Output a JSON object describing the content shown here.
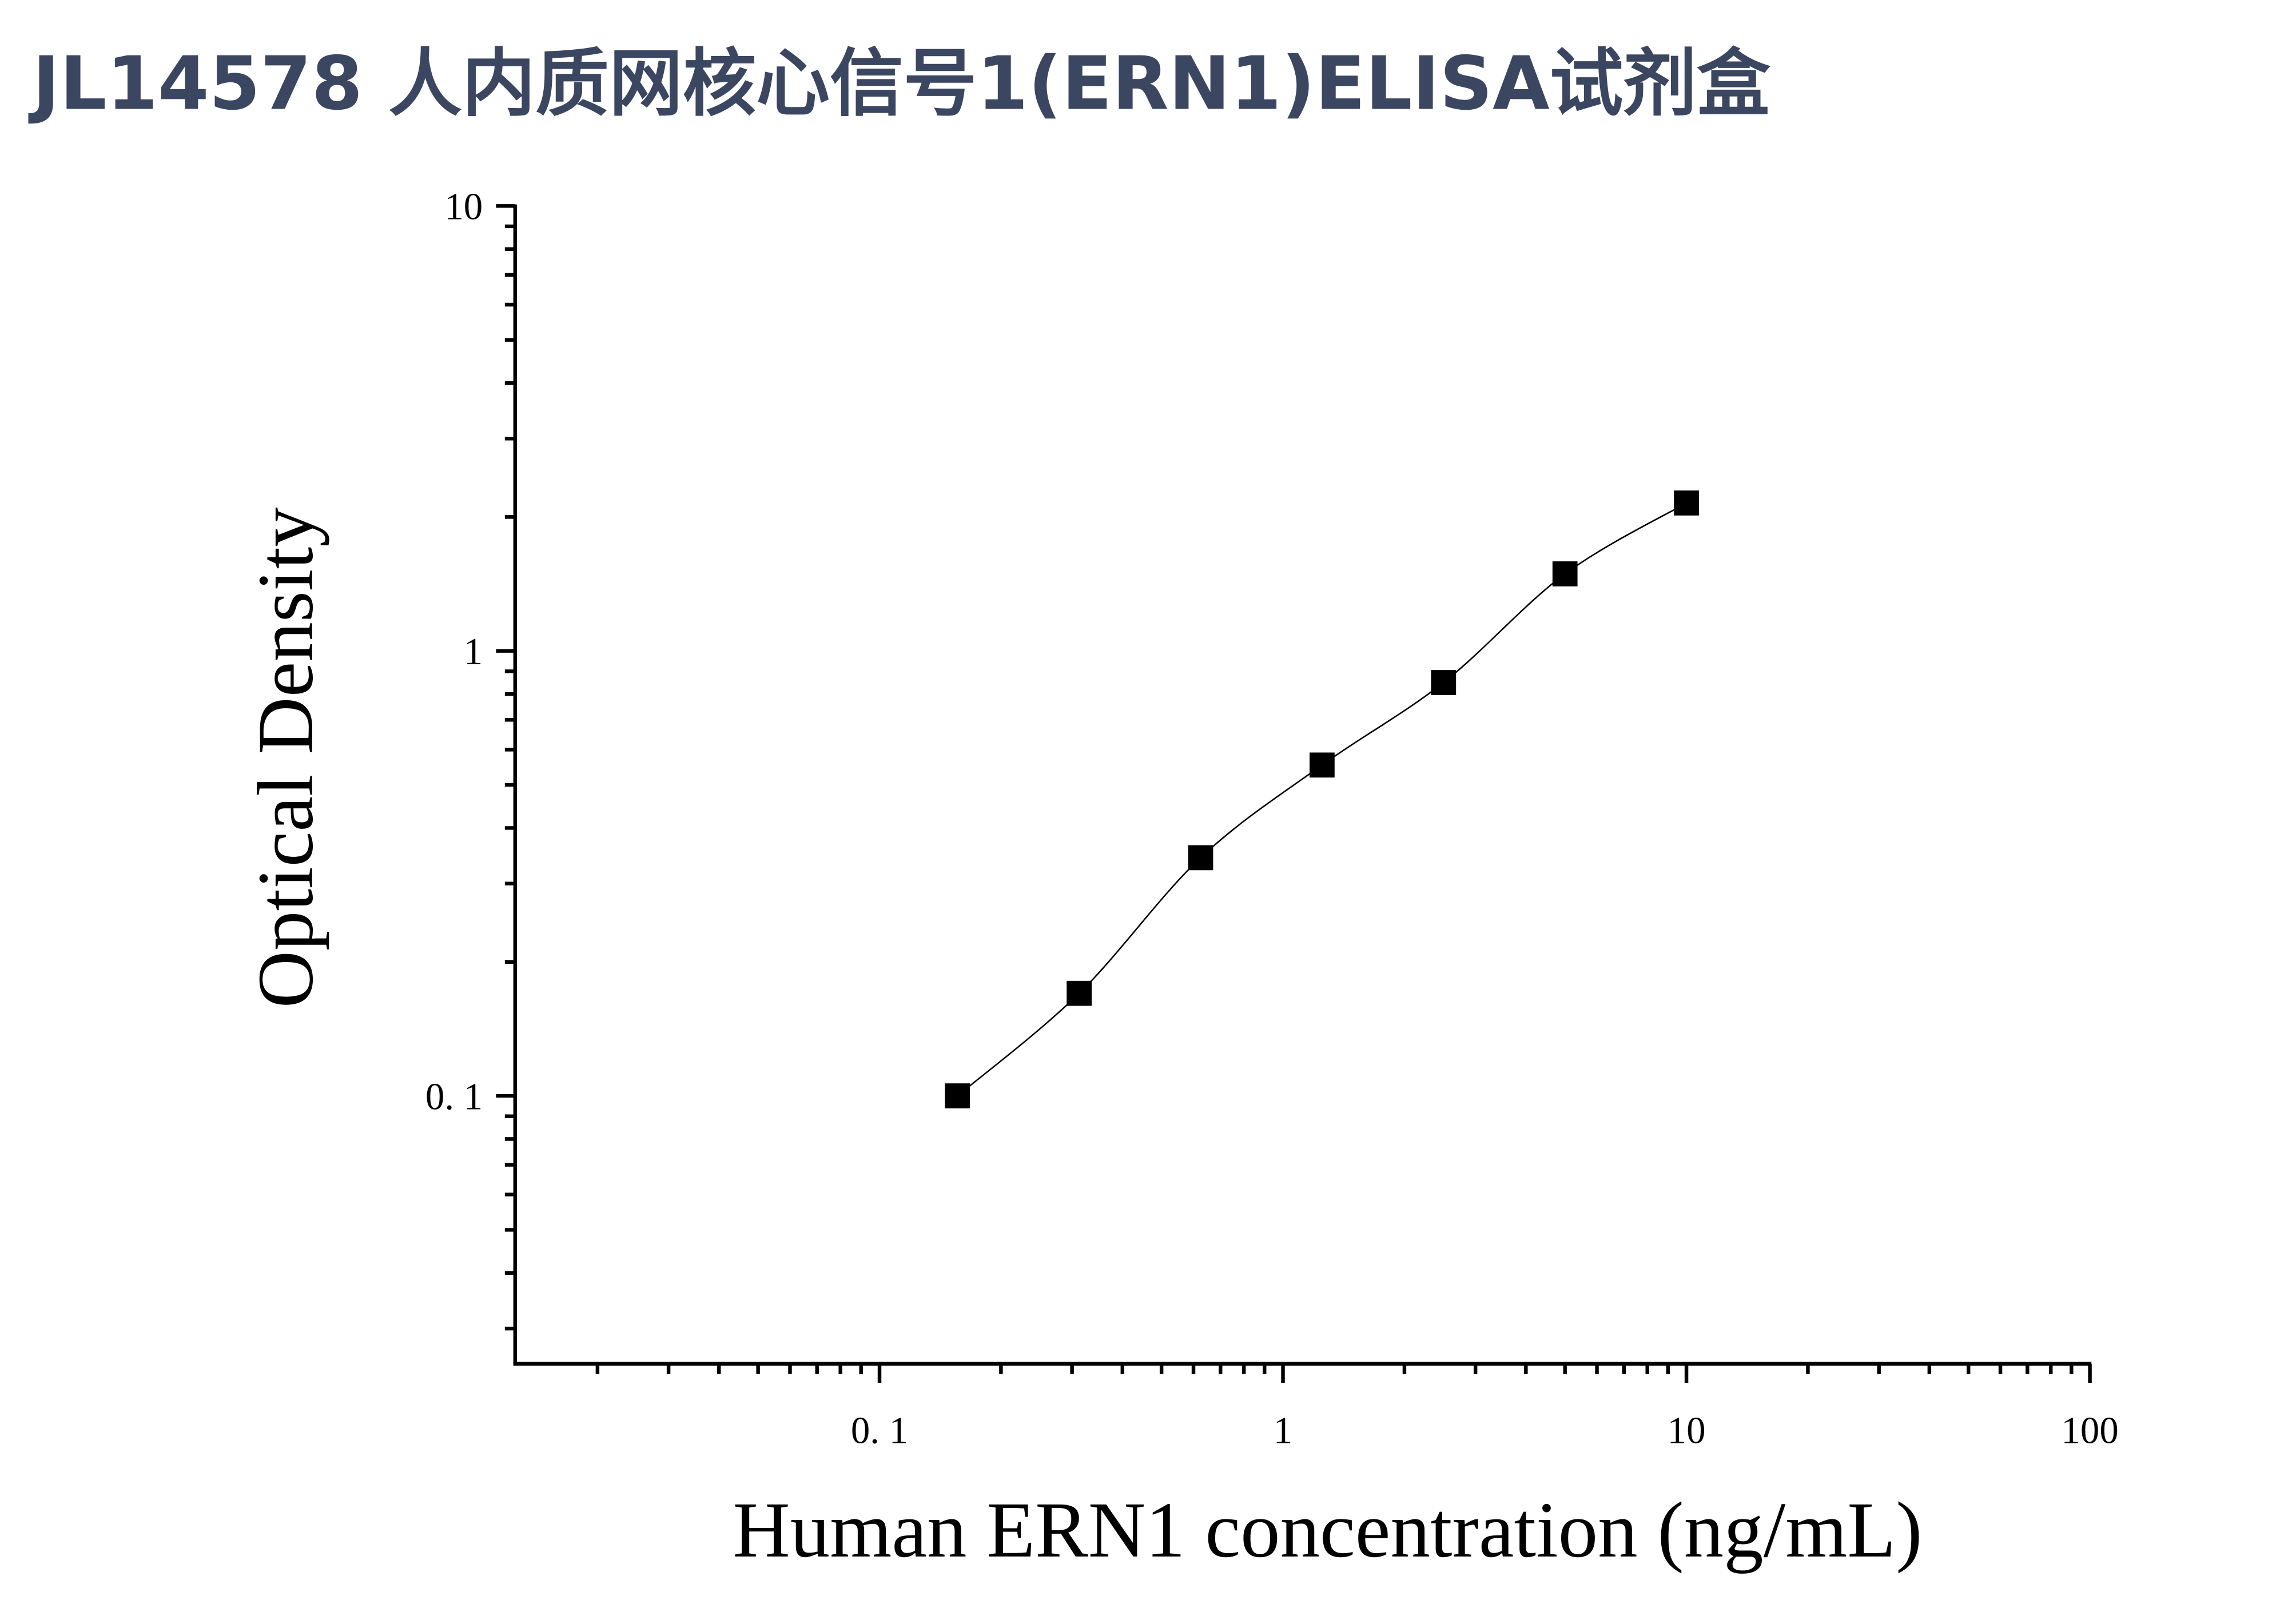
{
  "chart_data": {
    "type": "scatter",
    "title": "JL14578 人内质网核心信号1(ERN1)ELISA试剂盒",
    "x_label": "Human ERN1 concentration (ng/mL)",
    "y_label": "Optical Density",
    "x": [
      0.156,
      0.3125,
      0.625,
      1.25,
      2.5,
      5,
      10
    ],
    "series": [
      {
        "color": "#000000",
        "values": [
          0.1,
          0.17,
          0.343,
          0.554,
          0.849,
          1.49,
          2.15
        ]
      }
    ],
    "xscale": "log",
    "yscale": "log",
    "xlim": [
      0.0125,
      100
    ],
    "ylim": [
      0.025,
      10
    ],
    "xticks": [
      {
        "value": 0.1,
        "label": "0. 1"
      },
      1,
      10,
      100
    ],
    "yticks": [
      {
        "value": 0.1,
        "label": "0. 1"
      },
      1,
      10
    ],
    "xminorticks": [
      0.02,
      0.03,
      0.04,
      0.05,
      0.06,
      0.07,
      0.08,
      0.09,
      0.2,
      0.3,
      0.4,
      0.5,
      0.6,
      0.7,
      0.8,
      0.9,
      2,
      3,
      4,
      5,
      6,
      7,
      8,
      9,
      20,
      30,
      40,
      50,
      60,
      70,
      80,
      90
    ],
    "yminorticks": [
      0.03,
      0.04,
      0.05,
      0.06,
      0.07,
      0.08,
      0.09,
      0.2,
      0.3,
      0.4,
      0.5,
      0.6,
      0.7,
      0.8,
      0.9,
      2,
      3,
      4,
      5,
      6,
      7,
      8,
      9
    ],
    "fit_line": true
  }
}
